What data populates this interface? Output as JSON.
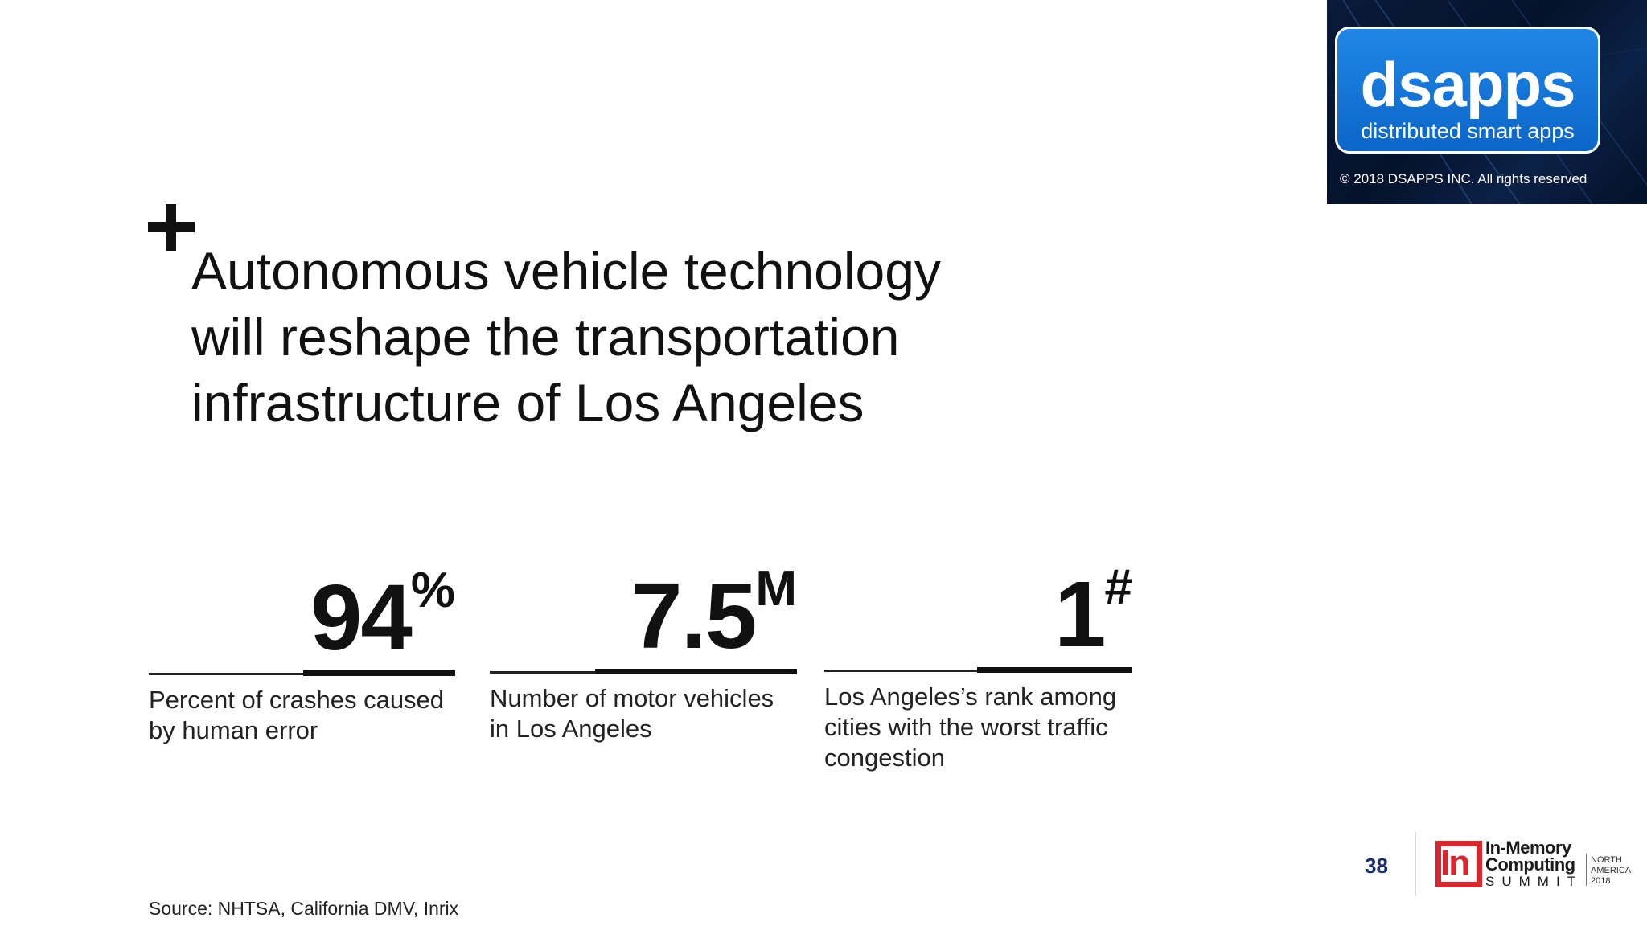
{
  "badge": {
    "brand": "dsapps",
    "tagline": "distributed smart apps",
    "copyright": "© 2018 DSAPPS INC. All rights reserved"
  },
  "headline": {
    "lines": [
      "Autonomous vehicle technology",
      "will reshape the transportation",
      "infrastructure of Los Angeles"
    ]
  },
  "stats": [
    {
      "value": "94",
      "suffix": "%",
      "label_lines": [
        "Percent of crashes caused",
        "by human error"
      ]
    },
    {
      "value": "7.5",
      "suffix": "M",
      "label_lines": [
        "Number of motor vehicles",
        "in Los Angeles"
      ]
    },
    {
      "value": "1",
      "suffix": "#",
      "label_lines": [
        "Los Angeles’s rank among",
        "cities with the worst traffic",
        "congestion"
      ]
    }
  ],
  "footer": {
    "source": "Source: NHTSA, California DMV, Inrix",
    "page_number": "38",
    "event_logo": {
      "mark": "In",
      "line1": "In-Memory",
      "line2": "Computing",
      "line3": "SUMMIT",
      "region_line1": "NORTH",
      "region_line2": "AMERICA",
      "region_line3": "2018",
      "accent_color": "#d7262d"
    }
  },
  "colors": {
    "badge_blue": "#0b66c8",
    "badge_panel": "#05122b",
    "text": "#111111",
    "page_number": "#1a2f6e"
  }
}
